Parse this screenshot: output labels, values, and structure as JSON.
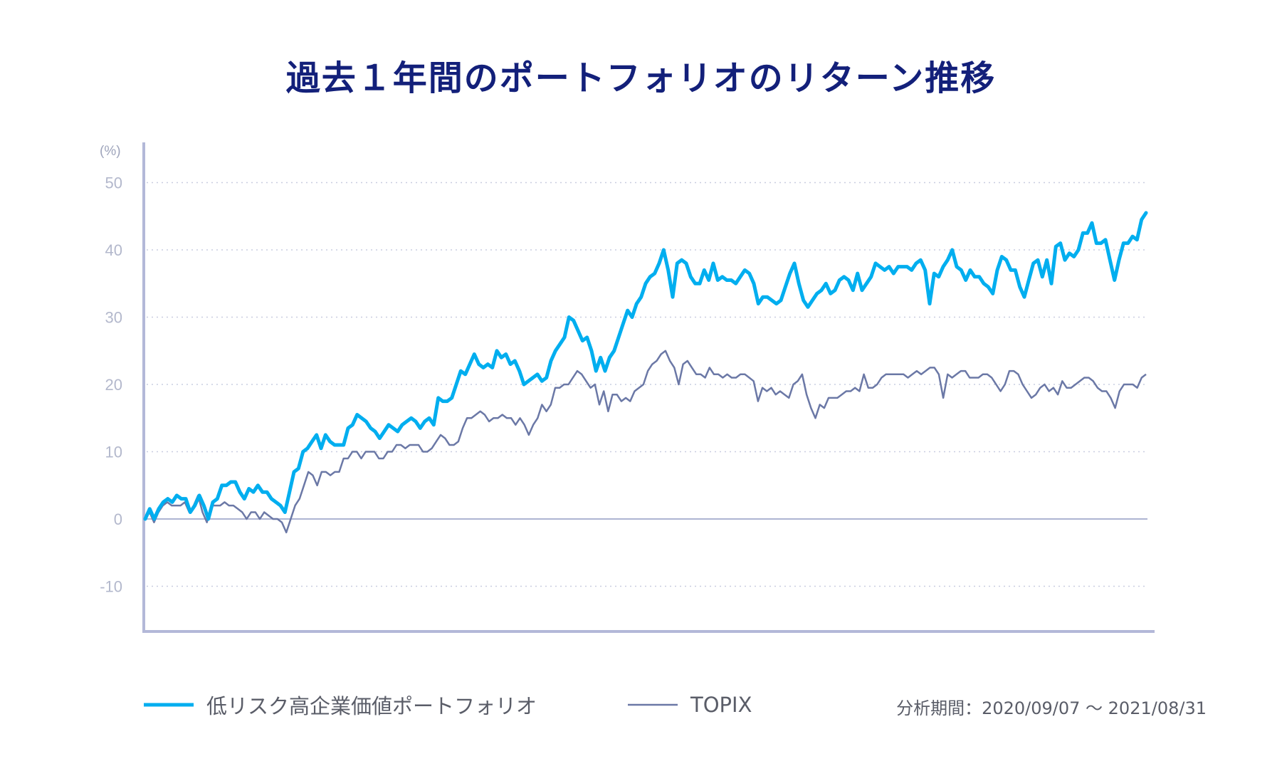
{
  "title": "過去１年間のポートフォリオのリターン推移",
  "period_label": "分析期間：2020/09/07 〜 2021/08/31",
  "colors": {
    "title": "#13207a",
    "portfolio": "#00aeef",
    "topix": "#6b78a6",
    "axis": "#b3b8d8"
  },
  "chart_data": {
    "type": "line",
    "unit_label": "(%)",
    "y_ticks": [
      50,
      40,
      30,
      20,
      10,
      0,
      -10
    ],
    "ylim": [
      -16,
      55
    ],
    "grid": "dotted horizontal",
    "legend_position": "bottom",
    "series": [
      {
        "name": "低リスク高企業価値ポートフォリオ",
        "color": "#00aeef",
        "values": [
          0,
          1.5,
          0,
          1.5,
          2.5,
          3,
          2.5,
          3.5,
          3,
          3,
          1,
          2,
          3.5,
          2,
          0,
          2.5,
          3,
          5,
          5,
          5.5,
          5.5,
          4,
          3,
          4.5,
          4,
          5,
          4,
          4,
          3,
          2.5,
          2,
          1,
          4,
          7,
          7.5,
          10,
          10.5,
          11.5,
          12.5,
          10.5,
          12.5,
          11.5,
          11,
          11,
          11,
          13.5,
          14,
          15.5,
          15,
          14.5,
          13.5,
          13,
          12,
          13,
          14,
          13.5,
          13,
          14,
          14.5,
          15,
          14.5,
          13.5,
          14.5,
          15,
          14,
          18,
          17.5,
          17.5,
          18,
          20,
          22,
          21.5,
          23,
          24.5,
          23,
          22.5,
          23,
          22.5,
          25,
          24,
          24.5,
          23,
          23.5,
          22,
          20,
          20.5,
          21,
          21.5,
          20.5,
          21,
          23.5,
          25,
          26,
          27,
          30,
          29.5,
          28,
          26.5,
          27,
          25,
          22,
          24,
          22,
          24,
          25,
          27,
          29,
          31,
          30,
          32,
          33,
          35,
          36,
          36.5,
          38,
          40,
          37,
          33,
          38,
          38.5,
          38,
          36,
          35,
          35,
          37,
          35.5,
          38,
          35.5,
          36,
          35.5,
          35.5,
          35,
          36,
          37,
          36.5,
          35,
          32,
          33,
          33,
          32.5,
          32,
          32.5,
          34.5,
          36.5,
          38,
          35,
          32.5,
          31.5,
          32.5,
          33.5,
          34,
          35,
          33.5,
          34,
          35.5,
          36,
          35.5,
          34,
          36.5,
          34,
          35,
          36,
          38,
          37.5,
          37,
          37.5,
          36.5,
          37.5,
          37.5,
          37.5,
          37,
          38,
          38.5,
          37,
          32,
          36.5,
          36,
          37.5,
          38.5,
          40,
          37.5,
          37,
          35.5,
          37,
          36,
          36,
          35,
          34.5,
          33.5,
          37,
          39,
          38.5,
          37,
          37,
          34.5,
          33,
          35.5,
          38,
          38.5,
          36,
          38.5,
          35,
          40.5,
          41,
          38.5,
          39.5,
          39,
          40,
          42.5,
          42.5,
          44,
          41,
          41,
          41.5,
          38.5,
          35.5,
          38.5,
          41,
          41,
          42,
          41.5,
          44.5,
          45.5
        ]
      },
      {
        "name": "TOPIX",
        "color": "#6b78a6",
        "values": [
          0,
          1,
          -0.5,
          1,
          2,
          2.5,
          2,
          2,
          2,
          2.5,
          1,
          2,
          3.5,
          1,
          -0.5,
          2,
          2,
          2,
          2.5,
          2,
          2,
          1.5,
          1,
          0,
          1,
          1,
          0,
          1,
          0.5,
          0,
          0,
          -0.5,
          -2,
          0,
          2,
          3,
          5,
          7,
          6.5,
          5,
          7,
          7,
          6.5,
          7,
          7,
          9,
          9,
          10,
          10,
          9,
          10,
          10,
          10,
          9,
          9,
          10,
          10,
          11,
          11,
          10.5,
          11,
          11,
          11,
          10,
          10,
          10.5,
          11.5,
          12.5,
          12,
          11,
          11,
          11.5,
          13.5,
          15,
          15,
          15.5,
          16,
          15.5,
          14.5,
          15,
          15,
          15.5,
          15,
          15,
          14,
          15,
          14,
          12.5,
          14,
          15,
          17,
          16,
          17,
          19.5,
          19.5,
          20,
          20,
          21,
          22,
          21.5,
          20.5,
          19.5,
          20,
          17,
          19,
          16,
          18.5,
          18.5,
          17.5,
          18,
          17.5,
          19,
          19.5,
          20,
          22,
          23,
          23.5,
          24.5,
          25,
          23.5,
          22.5,
          20,
          23,
          23.5,
          22.5,
          21.5,
          21.5,
          21,
          22.5,
          21.5,
          21.5,
          21,
          21.5,
          21,
          21,
          21.5,
          21.5,
          21,
          20.5,
          17.5,
          19.5,
          19,
          19.5,
          18.5,
          19,
          18.5,
          18,
          20,
          20.5,
          21.5,
          18.5,
          16.5,
          15,
          17,
          16.5,
          18,
          18,
          18,
          18.5,
          19,
          19,
          19.5,
          19,
          21.5,
          19.5,
          19.5,
          20,
          21,
          21.5,
          21.5,
          21.5,
          21.5,
          21.5,
          21,
          21.5,
          22,
          21.5,
          22,
          22.5,
          22.5,
          21.5,
          18,
          21.5,
          21,
          21.5,
          22,
          22,
          21,
          21,
          21,
          21.5,
          21.5,
          21,
          20,
          19,
          20,
          22,
          22,
          21.5,
          20,
          19,
          18,
          18.5,
          19.5,
          20,
          19,
          19.5,
          18.5,
          20.5,
          19.5,
          19.5,
          20,
          20.5,
          21,
          21,
          20.5,
          19.5,
          19,
          19,
          18,
          16.5,
          19,
          20,
          20,
          20,
          19.5,
          21,
          21.5
        ]
      }
    ]
  }
}
